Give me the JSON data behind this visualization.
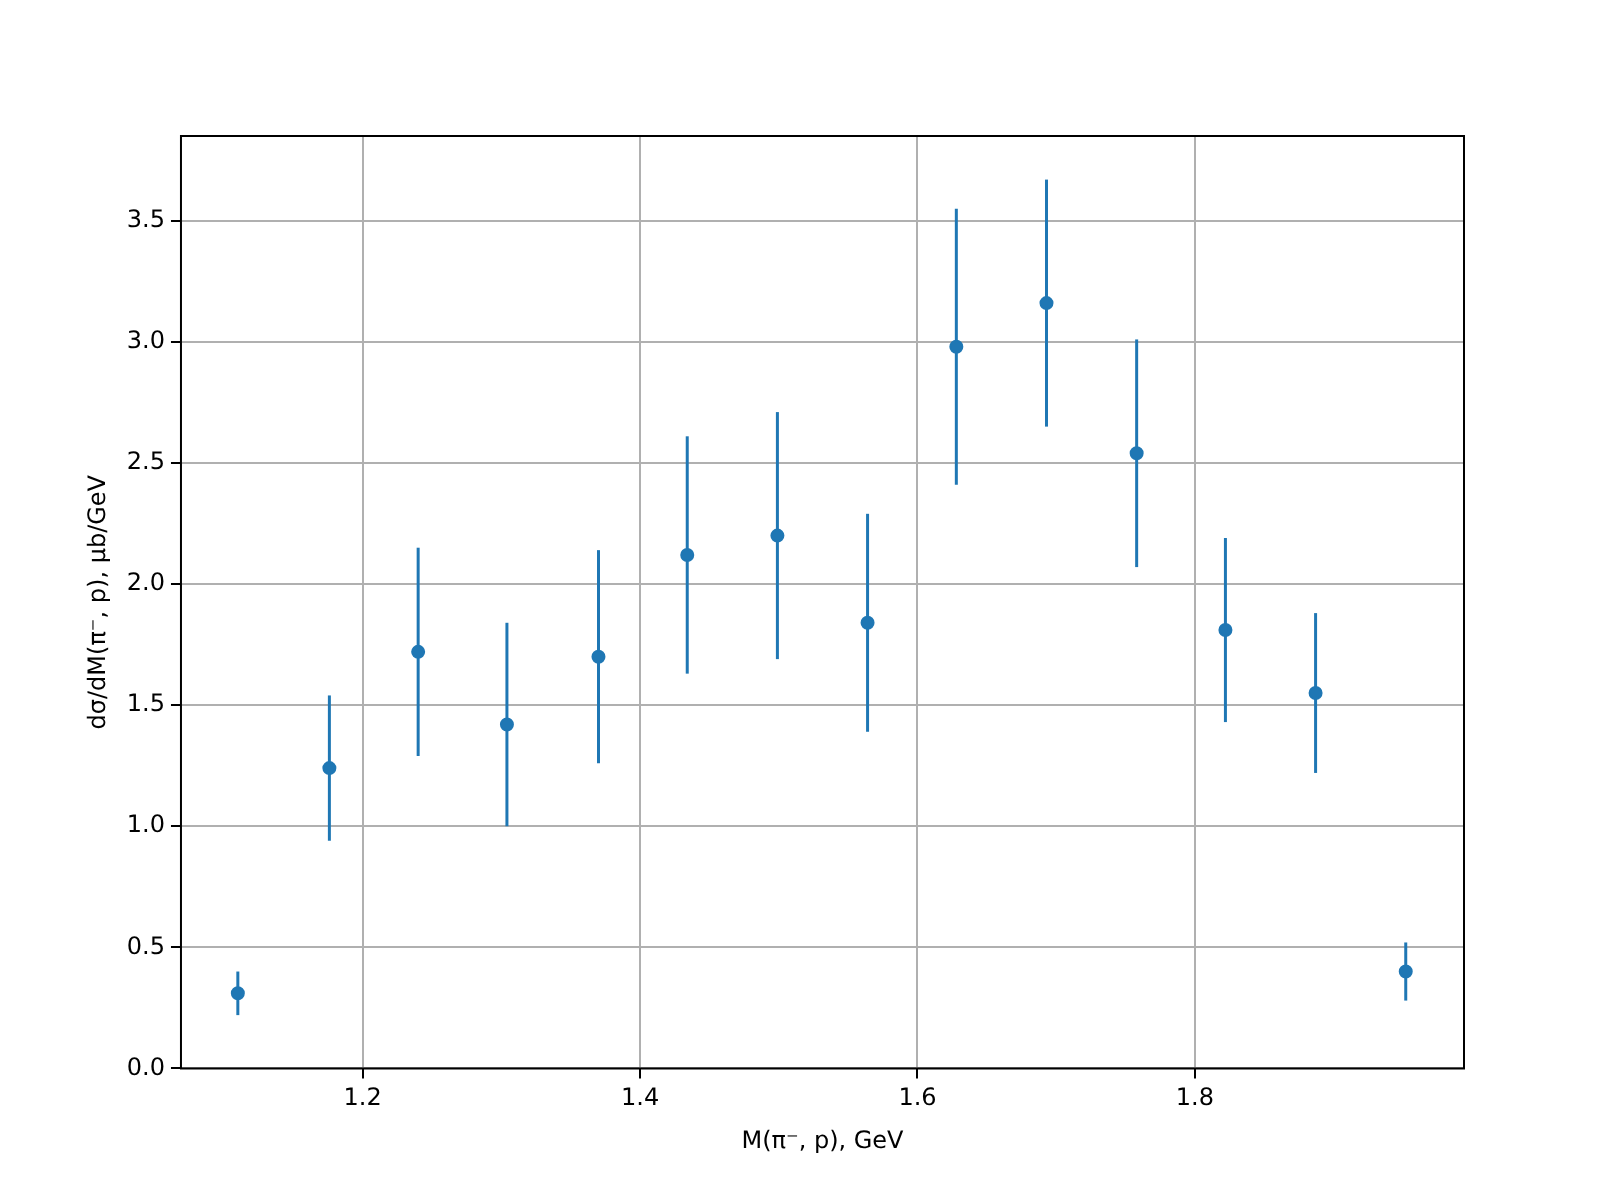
{
  "chart_data": {
    "type": "scatter",
    "xlabel": "M(π⁻, p), GeV",
    "ylabel": "dσ/dM(π⁻, p), μb/GeV",
    "x": [
      1.11,
      1.176,
      1.24,
      1.304,
      1.37,
      1.434,
      1.499,
      1.564,
      1.628,
      1.693,
      1.758,
      1.822,
      1.887,
      1.952
    ],
    "series": [
      {
        "color": "#1f77b4",
        "values": [
          0.31,
          1.24,
          1.72,
          1.42,
          1.7,
          2.12,
          2.2,
          1.84,
          2.98,
          3.16,
          2.54,
          1.81,
          1.55,
          0.4
        ],
        "errors": [
          0.09,
          0.3,
          0.43,
          0.42,
          0.44,
          0.49,
          0.51,
          0.45,
          0.57,
          0.51,
          0.47,
          0.38,
          0.33,
          0.12
        ]
      }
    ],
    "xlim": [
      1.069,
      1.994
    ],
    "xticks": [
      1.2,
      1.4,
      1.6,
      1.8
    ],
    "ylim": [
      0,
      3.85
    ],
    "yticks": [
      {
        "value": 0,
        "label": "0.0"
      },
      {
        "value": 0.5,
        "label": "0.5"
      },
      {
        "value": 1,
        "label": "1.0"
      },
      {
        "value": 1.5,
        "label": "1.5"
      },
      {
        "value": 2,
        "label": "2.0"
      },
      {
        "value": 2.5,
        "label": "2.5"
      },
      {
        "value": 3,
        "label": "3.0"
      },
      {
        "value": 3.5,
        "label": "3.5"
      }
    ],
    "grid": true,
    "marker": "circle"
  }
}
